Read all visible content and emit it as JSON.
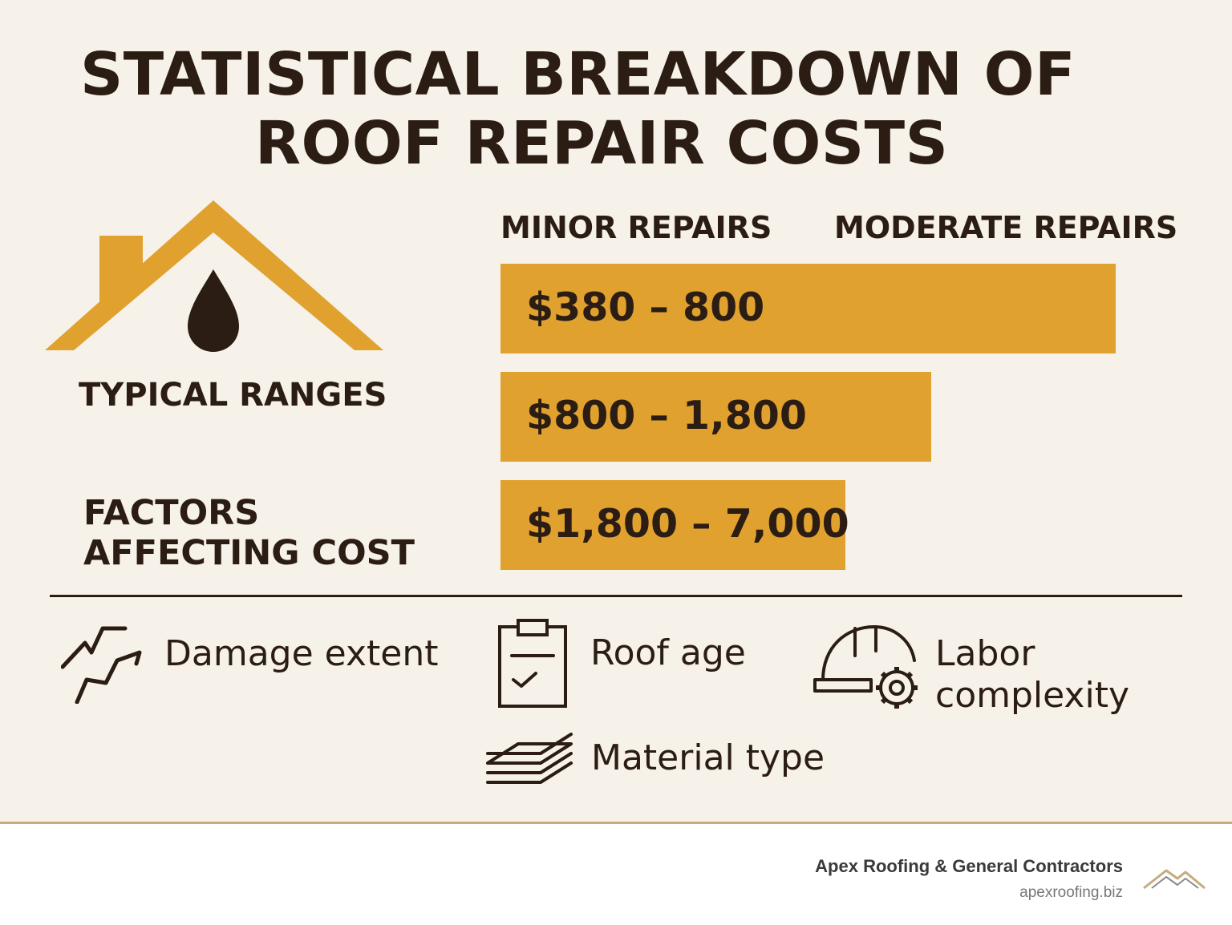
{
  "title": {
    "line1": "STATISTICAL BREAKDOWN OF",
    "line2": "ROOF REPAIR COSTS"
  },
  "left": {
    "typical_ranges": "TYPICAL RANGES",
    "factors_line1": "FACTORS",
    "factors_line2": "AFFECTING COST",
    "icon": "house-with-water-drop-icon"
  },
  "columns": {
    "minor": "MINOR REPAIRS",
    "moderate": "MODERATE REPAIRS"
  },
  "ranges": [
    {
      "label": "$380 – 800",
      "fill": 1.0
    },
    {
      "label": "$800 – 1,800",
      "fill": 0.7
    },
    {
      "label": "$1,800 – 7,000",
      "fill": 0.56
    }
  ],
  "factors": [
    {
      "label": "Damage extent",
      "icon": "crack-icon"
    },
    {
      "label": "Roof age",
      "icon": "clipboard-check-icon"
    },
    {
      "label_line1": "Labor",
      "label_line2": "complexity",
      "icon": "hardhat-gear-icon"
    },
    {
      "label": "Material type",
      "icon": "stacked-layers-icon"
    }
  ],
  "footer": {
    "company": "Apex Roofing & General Contractors",
    "url": "apexroofing.biz",
    "logo": "mountain-logo-icon"
  },
  "colors": {
    "background": "#f6f2ea",
    "accent": "#e0a12e",
    "text": "#2b1d14",
    "footer_border": "#c5ab7e"
  }
}
